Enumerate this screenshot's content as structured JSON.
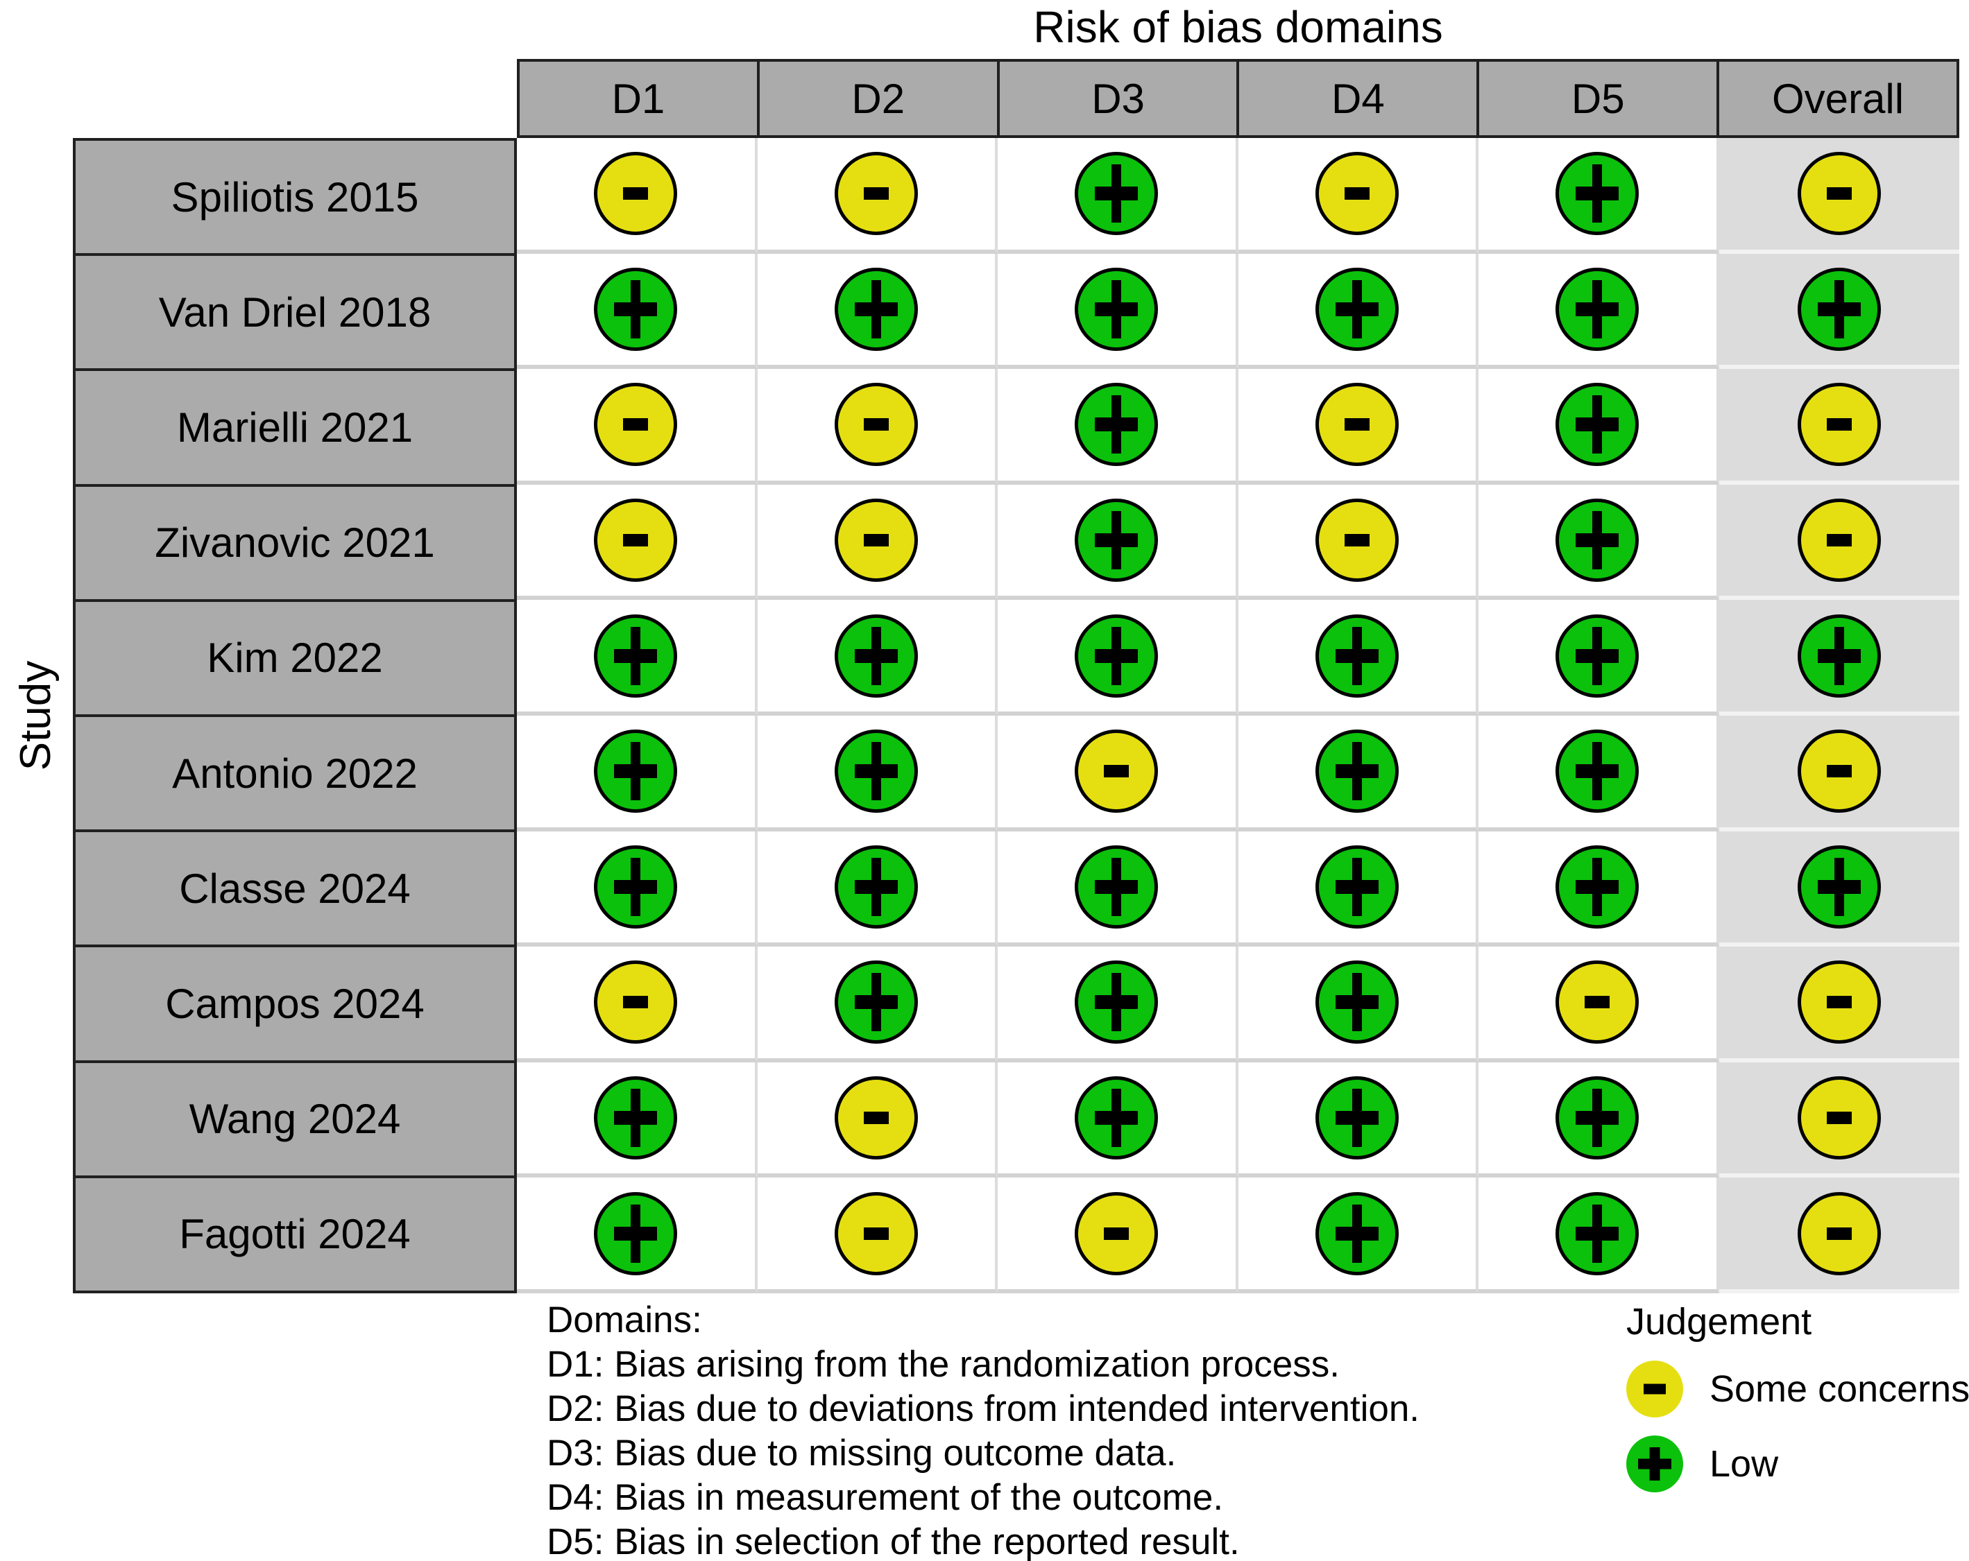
{
  "chart_data": {
    "type": "table",
    "title": "Risk of bias domains",
    "y_axis_label": "Study",
    "columns": [
      "D1",
      "D2",
      "D3",
      "D4",
      "D5",
      "Overall"
    ],
    "rows": [
      {
        "study": "Spiliotis 2015",
        "judgements": [
          "-",
          "-",
          "+",
          "-",
          "+",
          "-"
        ]
      },
      {
        "study": "Van Driel 2018",
        "judgements": [
          "+",
          "+",
          "+",
          "+",
          "+",
          "+"
        ]
      },
      {
        "study": "Marielli 2021",
        "judgements": [
          "-",
          "-",
          "+",
          "-",
          "+",
          "-"
        ]
      },
      {
        "study": "Zivanovic 2021",
        "judgements": [
          "-",
          "-",
          "+",
          "-",
          "+",
          "-"
        ]
      },
      {
        "study": "Kim 2022",
        "judgements": [
          "+",
          "+",
          "+",
          "+",
          "+",
          "+"
        ]
      },
      {
        "study": "Antonio 2022",
        "judgements": [
          "+",
          "+",
          "-",
          "+",
          "+",
          "-"
        ]
      },
      {
        "study": "Classe 2024",
        "judgements": [
          "+",
          "+",
          "+",
          "+",
          "+",
          "+"
        ]
      },
      {
        "study": "Campos 2024",
        "judgements": [
          "-",
          "+",
          "+",
          "+",
          "-",
          "-"
        ]
      },
      {
        "study": "Wang 2024",
        "judgements": [
          "+",
          "-",
          "+",
          "+",
          "+",
          "-"
        ]
      },
      {
        "study": "Fagotti 2024",
        "judgements": [
          "+",
          "-",
          "-",
          "+",
          "+",
          "-"
        ]
      }
    ],
    "judgement_key": {
      "-": {
        "label": "Some concerns",
        "color": "#e5df12"
      },
      "+": {
        "label": "Low",
        "color": "#0bc10b"
      }
    },
    "legend": {
      "title": "Judgement",
      "items": [
        {
          "symbol": "-",
          "label": "Some concerns",
          "color": "#e5df12"
        },
        {
          "symbol": "+",
          "label": "Low",
          "color": "#0bc10b"
        }
      ]
    },
    "footnote": {
      "heading": "Domains:",
      "items": [
        "D1: Bias arising from the randomization process.",
        "D2: Bias due to deviations from intended intervention.",
        "D3: Bias due to missing outcome data.",
        "D4: Bias in measurement of the outcome.",
        "D5: Bias in selection of the reported result."
      ]
    }
  },
  "colors": {
    "low_risk": "#0bc10b",
    "some_concerns": "#e5df12",
    "header_fill": "#ababab",
    "overall_column_fill": "#dcdcdc"
  }
}
